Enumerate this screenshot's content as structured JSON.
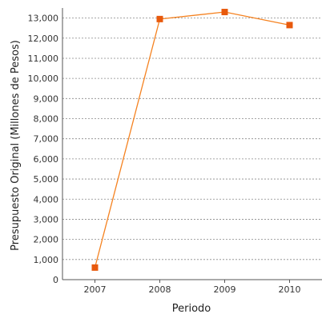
{
  "chart_data": {
    "type": "line",
    "title": "",
    "xlabel": "Periodo",
    "ylabel": "Presupuesto Original (Millones de Pesos)",
    "categories": [
      "2007",
      "2008",
      "2009",
      "2010"
    ],
    "series": [
      {
        "values": [
          600,
          12950,
          13300,
          12650
        ]
      }
    ],
    "ylim": [
      0,
      13500
    ],
    "yticks": [
      "0",
      "1,000",
      "2,000",
      "3,000",
      "4,000",
      "5,000",
      "6,000",
      "7,000",
      "8,000",
      "9,000",
      "10,000",
      "11,000",
      "12,000",
      "13,000"
    ],
    "grid": true,
    "colors": {
      "series": "#f58220",
      "marker": "#e8590c",
      "grid": "#888888",
      "axis": "#555555"
    }
  }
}
